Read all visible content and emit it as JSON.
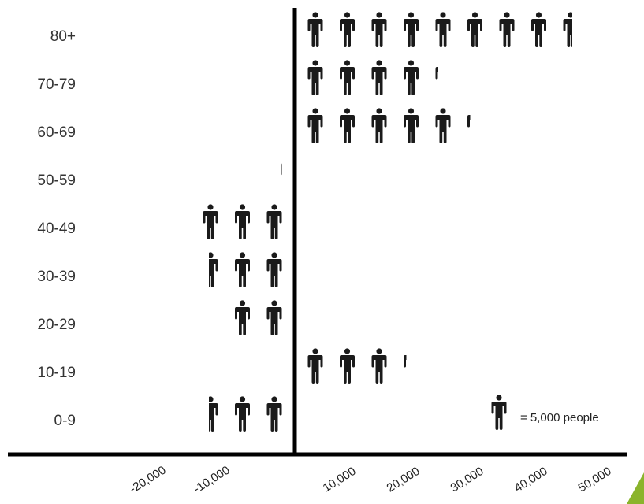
{
  "chart_data": {
    "type": "bar",
    "variant": "pictogram-diverging",
    "categories": [
      "80+",
      "70-79",
      "60-69",
      "50-59",
      "40-49",
      "30-39",
      "20-29",
      "10-19",
      "0-9"
    ],
    "values": [
      43000,
      21000,
      26000,
      -500,
      -15000,
      -13000,
      -10000,
      16000,
      -13000
    ],
    "x_ticks": [
      "-20,000",
      "-10,000",
      "10,000",
      "20,000",
      "30,000",
      "40,000",
      "50,000"
    ],
    "xlim": [
      -25000,
      50000
    ],
    "icon_unit": 5000,
    "icon": "person-icon",
    "legend": {
      "text": "= 5,000 people",
      "position": "bottom-right"
    },
    "title": "",
    "xlabel": "",
    "ylabel": "",
    "colors": {
      "icon": "#1a1a1a",
      "axis": "#000000",
      "accent": "#8ab42c"
    }
  }
}
